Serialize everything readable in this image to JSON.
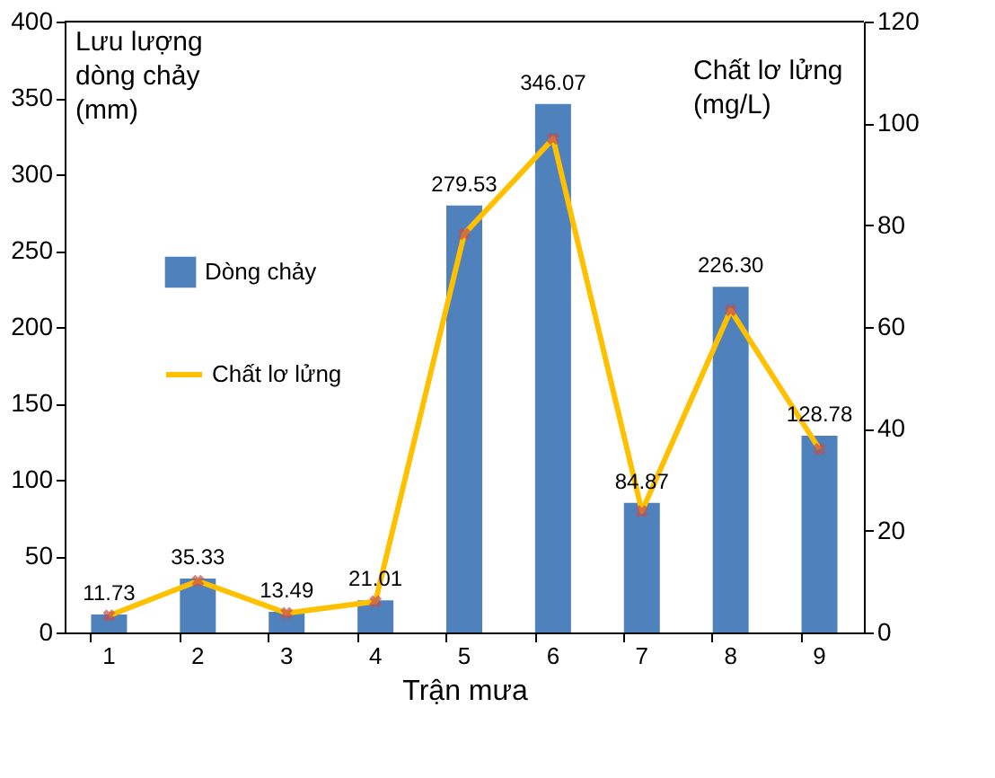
{
  "chart_data": {
    "type": "bar",
    "xlabel": "Trận mưa",
    "ylabel": "Lưu lượng\ndòng chảy\n(mm)",
    "y2label": "Chất lơ lửng\n(mg/L)",
    "categories": [
      "1",
      "2",
      "3",
      "4",
      "5",
      "6",
      "7",
      "8",
      "9"
    ],
    "series": [
      {
        "name": "Dòng chảy",
        "color": "#4f81bd",
        "values": [
          11.73,
          35.33,
          13.49,
          21.01,
          279.53,
          346.07,
          84.87,
          226.3,
          128.78
        ],
        "value_labels": [
          "11.73",
          "35.33",
          "13.49",
          "21.01",
          "279.53",
          "346.07",
          "84.87",
          "226.30",
          "128.78"
        ]
      },
      {
        "name": "Chất lơ lửng",
        "type": "line",
        "axis": "y2",
        "color": "#ffc000",
        "marker": "cross",
        "values": [
          3.3,
          10.1,
          3.8,
          6.1,
          78.3,
          97,
          23.8,
          63.3,
          36
        ]
      }
    ],
    "ylim": [
      0,
      400
    ],
    "yticks": [
      0,
      50,
      100,
      150,
      200,
      250,
      300,
      350,
      400
    ],
    "y2lim": [
      0,
      120
    ],
    "y2ticks": [
      0,
      20,
      40,
      60,
      80,
      100,
      120
    ],
    "grid": false,
    "legend": "left"
  }
}
